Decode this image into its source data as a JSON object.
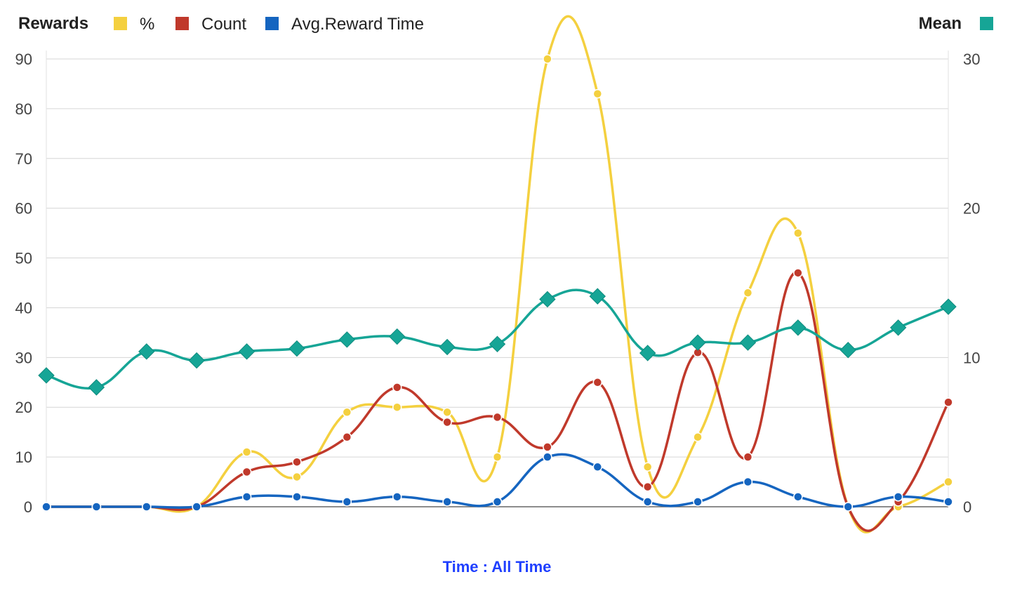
{
  "chart_data": {
    "type": "line",
    "legend": {
      "left_title": "Rewards",
      "right_title": "Mean",
      "placement": "top"
    },
    "xlabel": "Time : All Time",
    "y_left": {
      "min": 0,
      "max": 90,
      "ticks": [
        "0",
        "10",
        "20",
        "30",
        "40",
        "50",
        "60",
        "70",
        "80",
        "90"
      ]
    },
    "y_right": {
      "min": 0,
      "max": 30,
      "ticks": [
        "0",
        "10",
        "20",
        "30"
      ]
    },
    "grid": true,
    "series": [
      {
        "name": "%",
        "color": "#f4d03f",
        "axis": "left",
        "marker": "circle",
        "values": [
          0,
          0,
          0,
          0,
          11,
          6,
          19,
          20,
          19,
          10,
          90,
          83,
          8,
          14,
          43,
          55,
          0,
          0,
          5
        ]
      },
      {
        "name": "Count",
        "color": "#c0392b",
        "axis": "left",
        "marker": "circle",
        "values": [
          0,
          0,
          0,
          0,
          7,
          9,
          14,
          24,
          17,
          18,
          12,
          25,
          4,
          31,
          10,
          47,
          0,
          1,
          21
        ]
      },
      {
        "name": "Avg.Reward Time",
        "color": "#1565c0",
        "axis": "left",
        "marker": "circle",
        "values": [
          0,
          0,
          0,
          0,
          2,
          2,
          1,
          2,
          1,
          1,
          10,
          8,
          1,
          1,
          5,
          2,
          0,
          2,
          1
        ]
      },
      {
        "name": "Mean",
        "color": "#16a596",
        "axis": "right",
        "marker": "diamond",
        "values": [
          8.8,
          8.0,
          10.4,
          9.8,
          10.4,
          10.6,
          11.2,
          11.4,
          10.7,
          10.9,
          13.9,
          14.1,
          10.3,
          11.0,
          11.0,
          12.0,
          10.5,
          12.0,
          13.4
        ]
      }
    ]
  }
}
